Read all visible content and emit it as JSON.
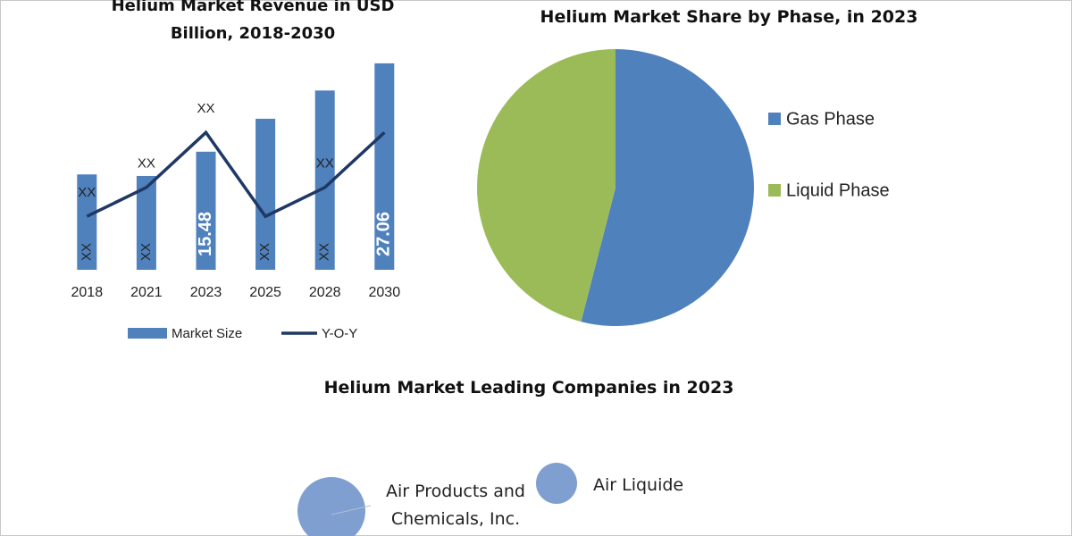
{
  "chart_data": [
    {
      "type": "combo",
      "title": "Helium Market Revenue in USD Billion, 2018-2030",
      "categories": [
        "2018",
        "2021",
        "2023",
        "2025",
        "2028",
        "2030"
      ],
      "series": [
        {
          "name": "Market Size",
          "type": "bar",
          "color": "#4f81bd",
          "values": [
            12.5,
            12.3,
            15.48,
            19.8,
            23.5,
            27.06
          ],
          "value_labels": [
            "XX",
            "XX",
            "15.48",
            "XX",
            "XX",
            "27.06"
          ]
        },
        {
          "name": "Y-O-Y",
          "type": "line",
          "color": "#1f3864",
          "values": [
            7,
            10.8,
            18,
            7,
            10.8,
            18
          ],
          "value_labels": [
            "XX",
            "XX",
            "XX",
            null,
            "XX",
            null
          ]
        }
      ],
      "legend": "bottom"
    },
    {
      "type": "pie",
      "title": "Helium Market Share by Phase, in 2023",
      "categories": [
        "Gas Phase",
        "Liquid Phase"
      ],
      "values": [
        54,
        46
      ],
      "colors": [
        "#4f81bd",
        "#9bbb59"
      ],
      "legend": "right"
    },
    {
      "type": "bubble",
      "title": "Helium Market Leading Companies in 2023",
      "categories": [
        "Air Products and Chemicals, Inc.",
        "Air Liquide"
      ],
      "values": [
        38,
        23
      ],
      "color": "#7f9fd0"
    }
  ]
}
